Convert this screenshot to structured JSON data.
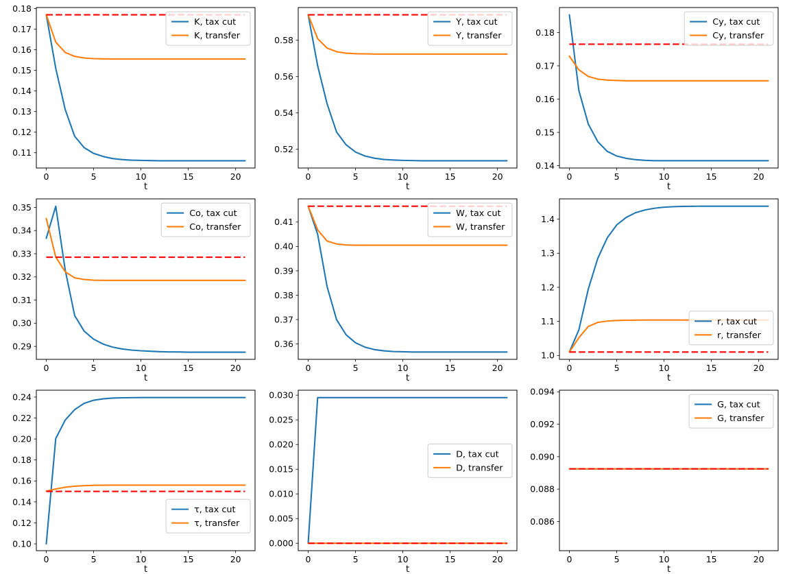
{
  "figure": {
    "background": "#ffffff",
    "colors": {
      "tax_cut": "#1f77b4",
      "transfer": "#ff7f0e",
      "steady_state": "#ff0000"
    },
    "grid": {
      "rows": 3,
      "cols": 3
    },
    "xlim": [
      -1.05,
      22.05
    ],
    "xticks": [
      0,
      5,
      10,
      15,
      20
    ],
    "xtick_labels": [
      "0",
      "5",
      "10",
      "15",
      "20"
    ],
    "t": [
      0,
      1,
      2,
      3,
      4,
      5,
      6,
      7,
      8,
      9,
      10,
      11,
      12,
      13,
      14,
      15,
      16,
      17,
      18,
      19,
      20,
      21
    ]
  },
  "chart_data": [
    {
      "id": "K",
      "type": "line",
      "xlabel": "t",
      "ylim": [
        0.1026,
        0.1805
      ],
      "ytick_vals": [
        0.11,
        0.12,
        0.13,
        0.14,
        0.15,
        0.16,
        0.17,
        0.18
      ],
      "ytick_labels": [
        "0.11",
        "0.12",
        "0.13",
        "0.14",
        "0.15",
        "0.16",
        "0.17",
        "0.18"
      ],
      "legend": {
        "loc": "upper right",
        "top_frac": 0.026
      },
      "series": [
        {
          "name": "K, tax cut",
          "role": "tax_cut",
          "values": [
            0.177,
            0.151,
            0.131,
            0.118,
            0.1125,
            0.1097,
            0.1082,
            0.1072,
            0.1067,
            0.1064,
            0.1063,
            0.1062,
            0.1061,
            0.1061,
            0.1061,
            0.1061,
            0.1061,
            0.1061,
            0.1061,
            0.1061,
            0.1061,
            0.1061
          ]
        },
        {
          "name": "K, transfer",
          "role": "transfer",
          "values": [
            0.177,
            0.1637,
            0.1587,
            0.1568,
            0.156,
            0.1557,
            0.1556,
            0.1555,
            0.1555,
            0.1555,
            0.1555,
            0.1555,
            0.1555,
            0.1555,
            0.1555,
            0.1555,
            0.1555,
            0.1555,
            0.1555,
            0.1555,
            0.1555,
            0.1555
          ]
        }
      ],
      "baseline": {
        "value": 0.177,
        "style": "dashed",
        "role": "steady_state"
      }
    },
    {
      "id": "Y",
      "type": "line",
      "xlabel": "t",
      "ylim": [
        0.5097,
        0.598
      ],
      "ytick_vals": [
        0.52,
        0.54,
        0.56,
        0.58
      ],
      "ytick_labels": [
        "0.52",
        "0.54",
        "0.56",
        "0.58"
      ],
      "legend": {
        "loc": "upper right",
        "top_frac": 0.026
      },
      "series": [
        {
          "name": "Y, tax cut",
          "role": "tax_cut",
          "values": [
            0.594,
            0.566,
            0.545,
            0.5295,
            0.5225,
            0.5185,
            0.5163,
            0.5151,
            0.5144,
            0.5141,
            0.5139,
            0.5138,
            0.5137,
            0.5137,
            0.5137,
            0.5137,
            0.5137,
            0.5137,
            0.5137,
            0.5137,
            0.5137,
            0.5137
          ]
        },
        {
          "name": "Y, transfer",
          "role": "transfer",
          "values": [
            0.594,
            0.5809,
            0.5757,
            0.5737,
            0.5729,
            0.5726,
            0.5725,
            0.5724,
            0.5724,
            0.5724,
            0.5724,
            0.5724,
            0.5724,
            0.5724,
            0.5724,
            0.5724,
            0.5724,
            0.5724,
            0.5724,
            0.5724,
            0.5724,
            0.5724
          ]
        }
      ],
      "baseline": {
        "value": 0.594,
        "style": "dashed",
        "role": "steady_state"
      }
    },
    {
      "id": "Cy",
      "type": "line",
      "xlabel": "t",
      "ylim": [
        0.1393,
        0.1875
      ],
      "ytick_vals": [
        0.14,
        0.15,
        0.16,
        0.17,
        0.18
      ],
      "ytick_labels": [
        "0.14",
        "0.15",
        "0.16",
        "0.17",
        "0.18"
      ],
      "legend": {
        "loc": "upper right",
        "top_frac": 0.026
      },
      "series": [
        {
          "name": "Cy, tax cut",
          "role": "tax_cut",
          "values": [
            0.1853,
            0.1626,
            0.1525,
            0.1472,
            0.1443,
            0.1429,
            0.1422,
            0.1418,
            0.1416,
            0.1415,
            0.1415,
            0.1415,
            0.1415,
            0.1415,
            0.1415,
            0.1415,
            0.1415,
            0.1415,
            0.1415,
            0.1415,
            0.1415,
            0.1415
          ]
        },
        {
          "name": "Cy, transfer",
          "role": "transfer",
          "values": [
            0.1729,
            0.1688,
            0.1668,
            0.166,
            0.1657,
            0.1656,
            0.1655,
            0.1655,
            0.1655,
            0.1655,
            0.1655,
            0.1655,
            0.1655,
            0.1655,
            0.1655,
            0.1655,
            0.1655,
            0.1655,
            0.1655,
            0.1655,
            0.1655,
            0.1655
          ]
        }
      ],
      "baseline": {
        "value": 0.1765,
        "style": "dashed",
        "role": "steady_state"
      }
    },
    {
      "id": "Co",
      "type": "line",
      "xlabel": "t",
      "ylim": [
        0.2844,
        0.3537
      ],
      "ytick_vals": [
        0.29,
        0.3,
        0.31,
        0.32,
        0.33,
        0.34,
        0.35
      ],
      "ytick_labels": [
        "0.29",
        "0.30",
        "0.31",
        "0.32",
        "0.33",
        "0.34",
        "0.35"
      ],
      "legend": {
        "loc": "upper right",
        "top_frac": 0.026
      },
      "series": [
        {
          "name": "Co, tax cut",
          "role": "tax_cut",
          "values": [
            0.3367,
            0.3505,
            0.323,
            0.3033,
            0.2966,
            0.2931,
            0.291,
            0.2897,
            0.2889,
            0.2884,
            0.2881,
            0.2879,
            0.2877,
            0.2876,
            0.2876,
            0.2875,
            0.2875,
            0.2875,
            0.2875,
            0.2875,
            0.2875,
            0.2875
          ]
        },
        {
          "name": "Co, transfer",
          "role": "transfer",
          "values": [
            0.3452,
            0.3286,
            0.3222,
            0.3196,
            0.3189,
            0.3186,
            0.3185,
            0.3185,
            0.3185,
            0.3185,
            0.3185,
            0.3185,
            0.3185,
            0.3185,
            0.3185,
            0.3185,
            0.3185,
            0.3185,
            0.3185,
            0.3185,
            0.3185,
            0.3185
          ]
        }
      ],
      "baseline": {
        "value": 0.3285,
        "style": "dashed",
        "role": "steady_state"
      }
    },
    {
      "id": "W",
      "type": "line",
      "xlabel": "t",
      "ylim": [
        0.3537,
        0.4195
      ],
      "ytick_vals": [
        0.36,
        0.37,
        0.38,
        0.39,
        0.4,
        0.41
      ],
      "ytick_labels": [
        "0.36",
        "0.37",
        "0.38",
        "0.39",
        "0.40",
        "0.41"
      ],
      "legend": {
        "loc": "upper right",
        "top_frac": 0.026
      },
      "series": [
        {
          "name": "W, tax cut",
          "role": "tax_cut",
          "values": [
            0.4165,
            0.405,
            0.3835,
            0.37,
            0.3638,
            0.3605,
            0.3587,
            0.3577,
            0.3572,
            0.3569,
            0.3568,
            0.3567,
            0.3567,
            0.3567,
            0.3567,
            0.3567,
            0.3567,
            0.3567,
            0.3567,
            0.3567,
            0.3567,
            0.3567
          ]
        },
        {
          "name": "W, transfer",
          "role": "transfer",
          "values": [
            0.4165,
            0.4068,
            0.4022,
            0.401,
            0.4006,
            0.4005,
            0.4005,
            0.4005,
            0.4005,
            0.4005,
            0.4005,
            0.4005,
            0.4005,
            0.4005,
            0.4005,
            0.4005,
            0.4005,
            0.4005,
            0.4005,
            0.4005,
            0.4005,
            0.4005
          ]
        }
      ],
      "baseline": {
        "value": 0.4165,
        "style": "dashed",
        "role": "steady_state"
      }
    },
    {
      "id": "r",
      "type": "line",
      "xlabel": "t",
      "ylim": [
        0.9886,
        1.4594
      ],
      "ytick_vals": [
        1.0,
        1.1,
        1.2,
        1.3,
        1.4
      ],
      "ytick_labels": [
        "1.0",
        "1.1",
        "1.2",
        "1.3",
        "1.4"
      ],
      "legend": {
        "loc": "lower right",
        "top_frac": 0.7
      },
      "series": [
        {
          "name": "r, tax cut",
          "role": "tax_cut",
          "values": [
            1.01,
            1.075,
            1.195,
            1.285,
            1.345,
            1.383,
            1.405,
            1.419,
            1.427,
            1.432,
            1.435,
            1.4365,
            1.4373,
            1.4377,
            1.4379,
            1.438,
            1.438,
            1.438,
            1.438,
            1.438,
            1.438,
            1.438
          ]
        },
        {
          "name": "r, transfer",
          "role": "transfer",
          "values": [
            1.01,
            1.052,
            1.085,
            1.097,
            1.101,
            1.1026,
            1.1033,
            1.1037,
            1.1039,
            1.104,
            1.104,
            1.104,
            1.104,
            1.104,
            1.104,
            1.104,
            1.104,
            1.104,
            1.104,
            1.104,
            1.104,
            1.104
          ]
        }
      ],
      "baseline": {
        "value": 1.01,
        "style": "dashed",
        "role": "steady_state"
      }
    },
    {
      "id": "tau",
      "type": "line",
      "xlabel": "t",
      "ylim": [
        0.0935,
        0.2465
      ],
      "ytick_vals": [
        0.1,
        0.12,
        0.14,
        0.16,
        0.18,
        0.2,
        0.22,
        0.24
      ],
      "ytick_labels": [
        "0.10",
        "0.12",
        "0.14",
        "0.16",
        "0.18",
        "0.20",
        "0.22",
        "0.24"
      ],
      "legend": {
        "loc": "lower right",
        "top_frac": 0.68
      },
      "series": [
        {
          "name": "τ, tax cut",
          "role": "tax_cut",
          "values": [
            0.1,
            0.2005,
            0.218,
            0.228,
            0.234,
            0.2369,
            0.2383,
            0.239,
            0.2393,
            0.2394,
            0.2395,
            0.2395,
            0.2395,
            0.2395,
            0.2395,
            0.2395,
            0.2395,
            0.2395,
            0.2395,
            0.2395,
            0.2395,
            0.2395
          ]
        },
        {
          "name": "τ, transfer",
          "role": "transfer",
          "values": [
            0.1503,
            0.1523,
            0.154,
            0.155,
            0.1555,
            0.1558,
            0.1559,
            0.156,
            0.156,
            0.156,
            0.156,
            0.156,
            0.156,
            0.156,
            0.156,
            0.156,
            0.156,
            0.156,
            0.156,
            0.156,
            0.156,
            0.156
          ]
        }
      ],
      "baseline": {
        "value": 0.15,
        "style": "dashed",
        "role": "steady_state"
      }
    },
    {
      "id": "D",
      "type": "line",
      "xlabel": "t",
      "ylim": [
        -0.0015,
        0.031
      ],
      "ytick_vals": [
        0.0,
        0.005,
        0.01,
        0.015,
        0.02,
        0.025,
        0.03
      ],
      "ytick_labels": [
        "0.000",
        "0.005",
        "0.010",
        "0.015",
        "0.020",
        "0.025",
        "0.030"
      ],
      "legend": {
        "loc": "center right",
        "top_frac": 0.335
      },
      "series": [
        {
          "name": "D, tax cut",
          "role": "tax_cut",
          "values": [
            0.0,
            0.0295,
            0.0295,
            0.0295,
            0.0295,
            0.0295,
            0.0295,
            0.0295,
            0.0295,
            0.0295,
            0.0295,
            0.0295,
            0.0295,
            0.0295,
            0.0295,
            0.0295,
            0.0295,
            0.0295,
            0.0295,
            0.0295,
            0.0295,
            0.0295
          ]
        },
        {
          "name": "D, transfer",
          "role": "transfer",
          "values": [
            0.0,
            0.0,
            0.0,
            0.0,
            0.0,
            0.0,
            0.0,
            0.0,
            0.0,
            0.0,
            0.0,
            0.0,
            0.0,
            0.0,
            0.0,
            0.0,
            0.0,
            0.0,
            0.0,
            0.0,
            0.0,
            0.0
          ]
        }
      ],
      "baseline": {
        "value": 0.0,
        "style": "dashed",
        "role": "steady_state"
      }
    },
    {
      "id": "G",
      "type": "line",
      "xlabel": "t",
      "ylim": [
        0.0842,
        0.0941
      ],
      "ytick_vals": [
        0.086,
        0.088,
        0.09,
        0.092,
        0.094
      ],
      "ytick_labels": [
        "0.086",
        "0.088",
        "0.090",
        "0.092",
        "0.094"
      ],
      "legend": {
        "loc": "upper right",
        "top_frac": 0.026
      },
      "series": [
        {
          "name": "G, tax cut",
          "role": "tax_cut",
          "values": [
            0.08925,
            0.08925,
            0.08925,
            0.08925,
            0.08925,
            0.08925,
            0.08925,
            0.08925,
            0.08925,
            0.08925,
            0.08925,
            0.08925,
            0.08925,
            0.08925,
            0.08925,
            0.08925,
            0.08925,
            0.08925,
            0.08925,
            0.08925,
            0.08925,
            0.08925
          ]
        },
        {
          "name": "G, transfer",
          "role": "transfer",
          "values": [
            0.08925,
            0.08925,
            0.08925,
            0.08925,
            0.08925,
            0.08925,
            0.08925,
            0.08925,
            0.08925,
            0.08925,
            0.08925,
            0.08925,
            0.08925,
            0.08925,
            0.08925,
            0.08925,
            0.08925,
            0.08925,
            0.08925,
            0.08925,
            0.08925,
            0.08925
          ]
        }
      ],
      "baseline": {
        "value": 0.08925,
        "style": "dashed",
        "role": "steady_state"
      }
    }
  ]
}
